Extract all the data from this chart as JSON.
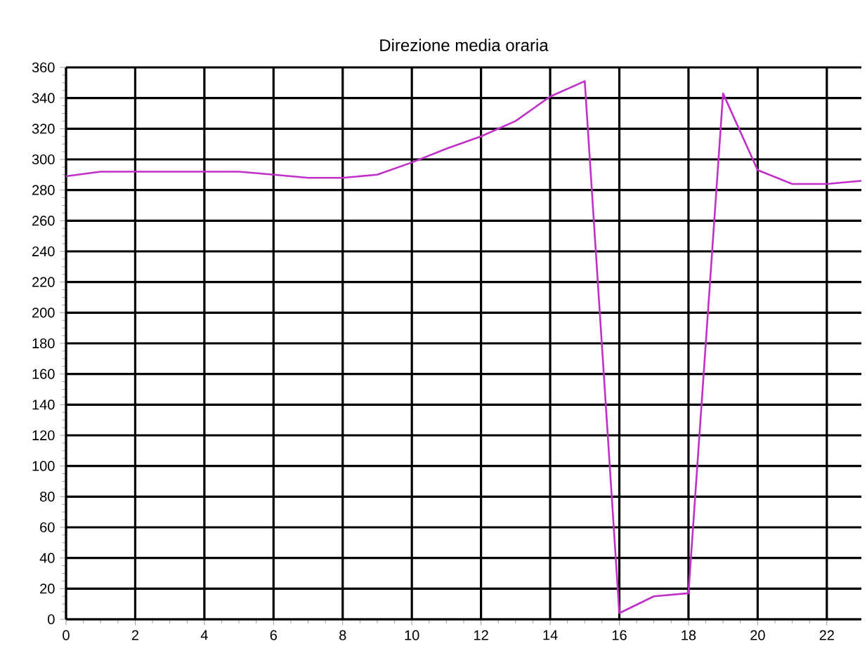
{
  "chart_data": {
    "type": "line",
    "title": "Direzione media oraria",
    "x": [
      0,
      1,
      2,
      3,
      4,
      5,
      6,
      7,
      8,
      9,
      10,
      11,
      12,
      13,
      14,
      15,
      16,
      17,
      18,
      19,
      20,
      21,
      22,
      23
    ],
    "series": [
      {
        "color": "#c030c8",
        "values": [
          289,
          292,
          292,
          292,
          292,
          292,
          290,
          288,
          288,
          290,
          298,
          307,
          315,
          325,
          341,
          351,
          4,
          15,
          17,
          343,
          293,
          284,
          284,
          286
        ]
      }
    ],
    "xlim": [
      0,
      23
    ],
    "ylim": [
      0,
      360
    ],
    "xticks": [
      0,
      2,
      4,
      6,
      8,
      10,
      12,
      14,
      16,
      18,
      20,
      22
    ],
    "yticks": [
      0,
      20,
      40,
      60,
      80,
      100,
      120,
      140,
      160,
      180,
      200,
      220,
      240,
      260,
      280,
      300,
      320,
      340,
      360
    ],
    "grid": true,
    "marker": "none",
    "line_style": "solid"
  }
}
